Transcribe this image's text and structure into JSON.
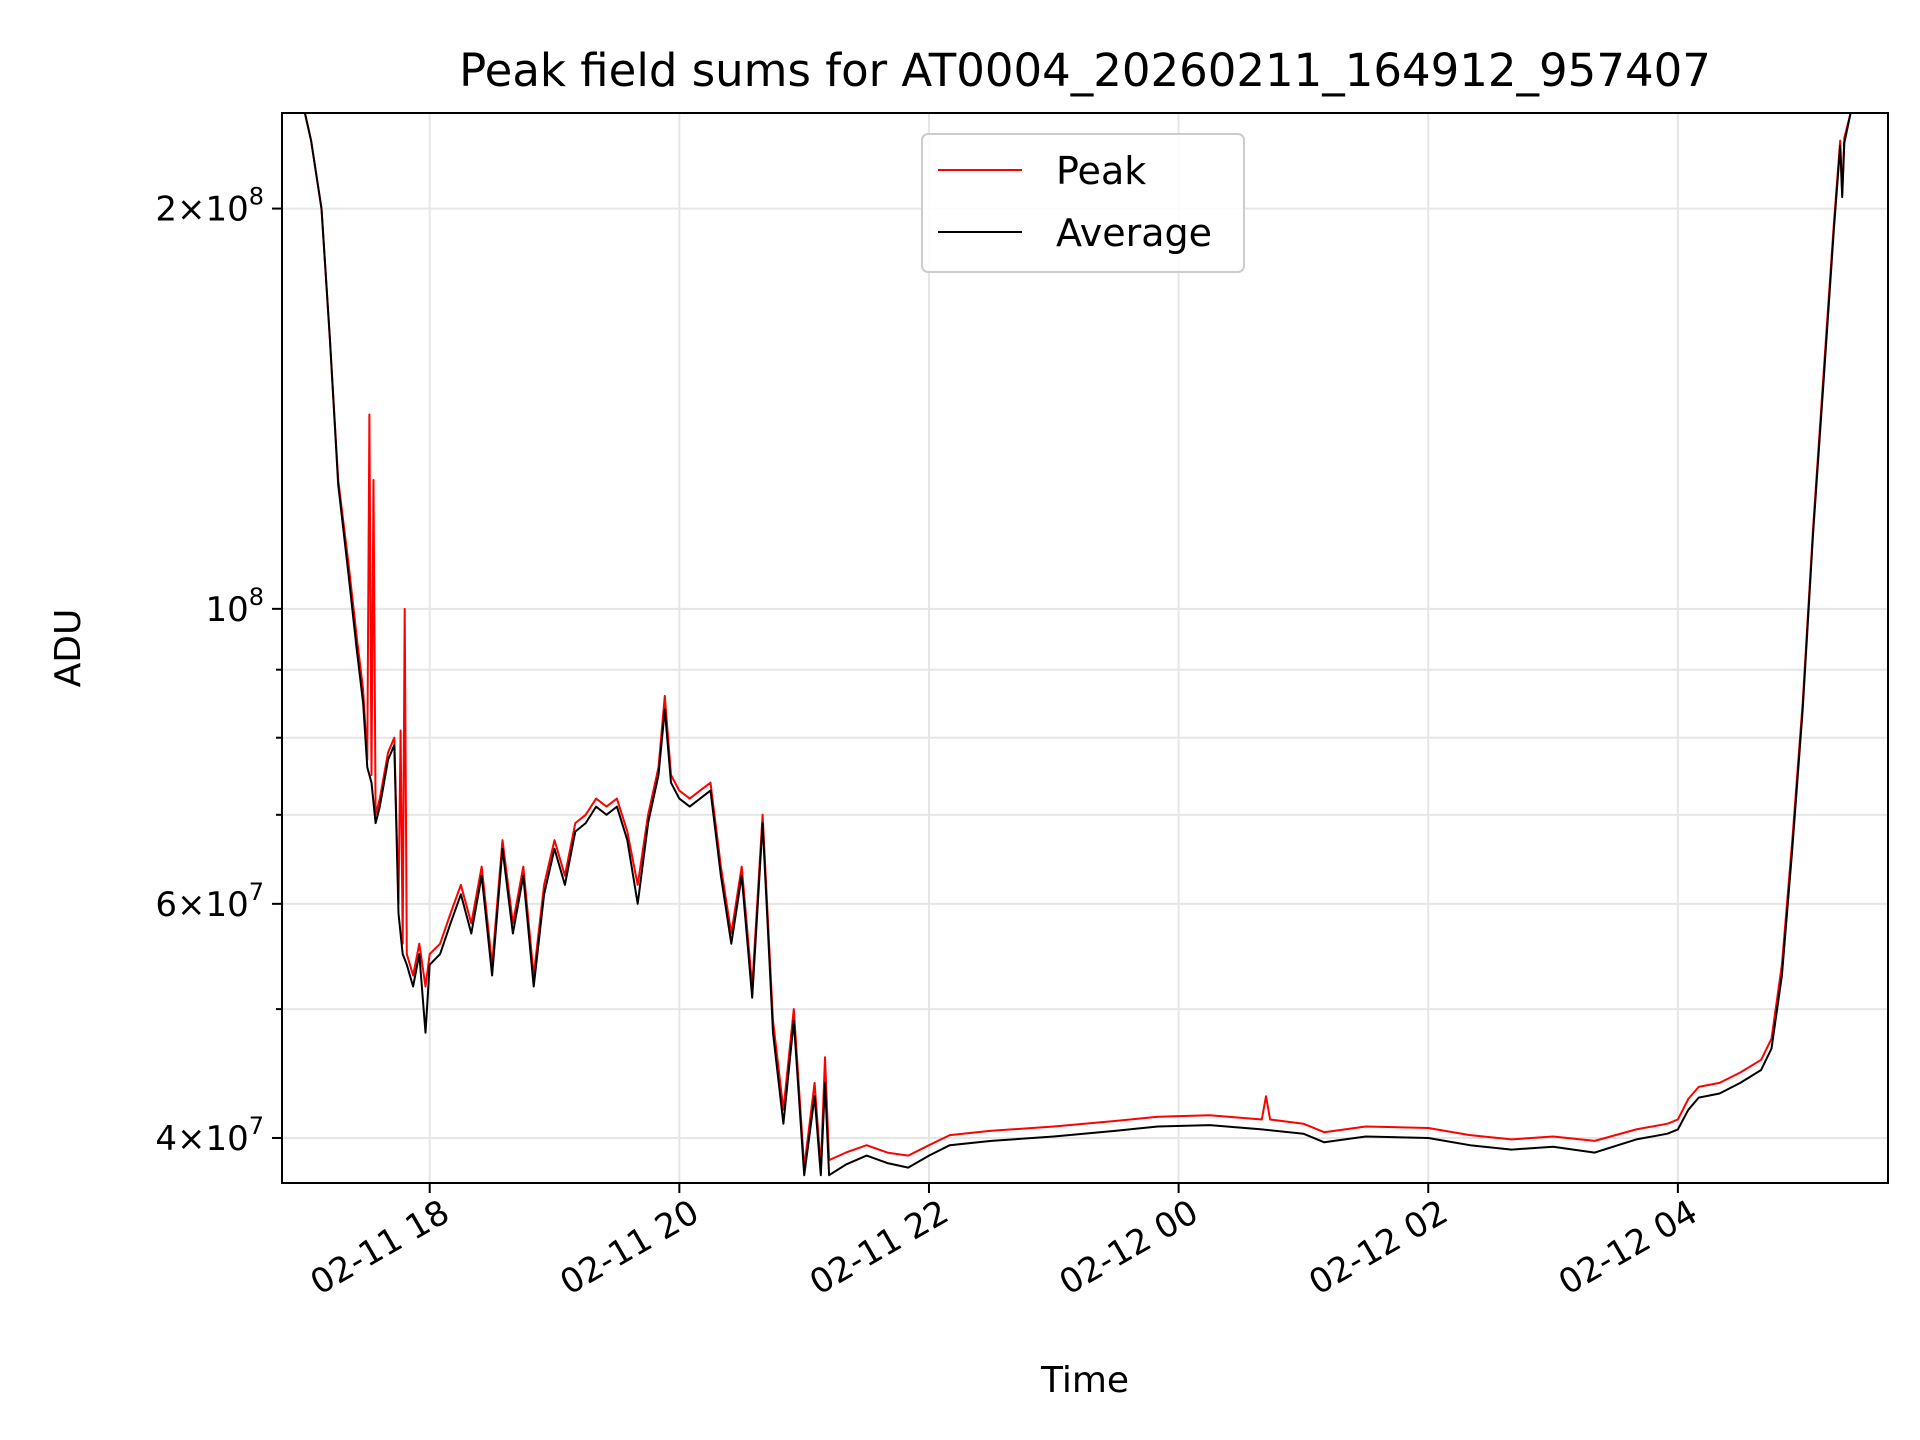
{
  "chart_data": {
    "type": "line",
    "title": "Peak field sums for AT0004_20260211_164912_957407",
    "xlabel": "Time",
    "ylabel": "ADU",
    "yscale": "log",
    "xlim": [
      "2026-02-11 16:49",
      "2026-02-12 05:41"
    ],
    "ylim": [
      37000000,
      236000000
    ],
    "grid": true,
    "legend_position": "top-center",
    "x_ticks": [
      {
        "value": "2026-02-11 18:00",
        "label": "02-11 18"
      },
      {
        "value": "2026-02-11 20:00",
        "label": "02-11 20"
      },
      {
        "value": "2026-02-11 22:00",
        "label": "02-11 22"
      },
      {
        "value": "2026-02-12 00:00",
        "label": "02-12 00"
      },
      {
        "value": "2026-02-12 02:00",
        "label": "02-12 02"
      },
      {
        "value": "2026-02-12 04:00",
        "label": "02-12 04"
      }
    ],
    "y_ticks": [
      {
        "value": 40000000,
        "base": "4",
        "exp": "7"
      },
      {
        "value": 60000000,
        "base": "6",
        "exp": "7"
      },
      {
        "value": 100000000,
        "base": "",
        "exp": "8"
      },
      {
        "value": 200000000,
        "base": "2",
        "exp": "8"
      }
    ],
    "y_minor_ticks": [
      50000000,
      70000000,
      80000000,
      90000000
    ],
    "series": [
      {
        "name": "Peak",
        "color": "#ff0000",
        "points": [
          [
            "2026-02-11 16:49",
            236000000
          ],
          [
            "2026-02-11 17:00",
            236000000
          ],
          [
            "2026-02-11 17:03",
            225000000
          ],
          [
            "2026-02-11 17:08",
            200000000
          ],
          [
            "2026-02-11 17:12",
            160000000
          ],
          [
            "2026-02-11 17:16",
            125000000
          ],
          [
            "2026-02-11 17:21",
            108000000
          ],
          [
            "2026-02-11 17:25",
            95000000
          ],
          [
            "2026-02-11 17:28",
            87000000
          ],
          [
            "2026-02-11 17:30",
            77000000
          ],
          [
            "2026-02-11 17:31",
            140000000
          ],
          [
            "2026-02-11 17:32",
            75000000
          ],
          [
            "2026-02-11 17:33",
            125000000
          ],
          [
            "2026-02-11 17:34",
            70000000
          ],
          [
            "2026-02-11 17:36",
            72000000
          ],
          [
            "2026-02-11 17:40",
            78000000
          ],
          [
            "2026-02-11 17:43",
            80000000
          ],
          [
            "2026-02-11 17:45",
            60000000
          ],
          [
            "2026-02-11 17:46",
            81000000
          ],
          [
            "2026-02-11 17:47",
            56000000
          ],
          [
            "2026-02-11 17:48",
            100000000
          ],
          [
            "2026-02-11 17:49",
            55000000
          ],
          [
            "2026-02-11 17:52",
            53000000
          ],
          [
            "2026-02-11 17:55",
            56000000
          ],
          [
            "2026-02-11 17:58",
            52000000
          ],
          [
            "2026-02-11 18:00",
            55000000
          ],
          [
            "2026-02-11 18:05",
            56000000
          ],
          [
            "2026-02-11 18:10",
            59000000
          ],
          [
            "2026-02-11 18:15",
            62000000
          ],
          [
            "2026-02-11 18:20",
            58000000
          ],
          [
            "2026-02-11 18:25",
            64000000
          ],
          [
            "2026-02-11 18:30",
            54000000
          ],
          [
            "2026-02-11 18:35",
            67000000
          ],
          [
            "2026-02-11 18:40",
            58000000
          ],
          [
            "2026-02-11 18:45",
            64000000
          ],
          [
            "2026-02-11 18:50",
            53000000
          ],
          [
            "2026-02-11 18:55",
            62000000
          ],
          [
            "2026-02-11 19:00",
            67000000
          ],
          [
            "2026-02-11 19:05",
            63000000
          ],
          [
            "2026-02-11 19:10",
            69000000
          ],
          [
            "2026-02-11 19:15",
            70000000
          ],
          [
            "2026-02-11 19:20",
            72000000
          ],
          [
            "2026-02-11 19:25",
            71000000
          ],
          [
            "2026-02-11 19:30",
            72000000
          ],
          [
            "2026-02-11 19:35",
            68000000
          ],
          [
            "2026-02-11 19:40",
            62000000
          ],
          [
            "2026-02-11 19:45",
            70000000
          ],
          [
            "2026-02-11 19:50",
            76000000
          ],
          [
            "2026-02-11 19:53",
            86000000
          ],
          [
            "2026-02-11 19:56",
            75000000
          ],
          [
            "2026-02-11 20:00",
            73000000
          ],
          [
            "2026-02-11 20:05",
            72000000
          ],
          [
            "2026-02-11 20:10",
            73000000
          ],
          [
            "2026-02-11 20:15",
            74000000
          ],
          [
            "2026-02-11 20:20",
            64000000
          ],
          [
            "2026-02-11 20:25",
            57000000
          ],
          [
            "2026-02-11 20:30",
            64000000
          ],
          [
            "2026-02-11 20:35",
            52000000
          ],
          [
            "2026-02-11 20:40",
            70000000
          ],
          [
            "2026-02-11 20:45",
            49000000
          ],
          [
            "2026-02-11 20:50",
            42000000
          ],
          [
            "2026-02-11 20:55",
            50000000
          ],
          [
            "2026-02-11 21:00",
            38000000
          ],
          [
            "2026-02-11 21:05",
            44000000
          ],
          [
            "2026-02-11 21:08",
            38000000
          ],
          [
            "2026-02-11 21:10",
            46000000
          ],
          [
            "2026-02-11 21:12",
            38500000
          ],
          [
            "2026-02-11 21:20",
            39000000
          ],
          [
            "2026-02-11 21:30",
            39500000
          ],
          [
            "2026-02-11 21:40",
            39000000
          ],
          [
            "2026-02-11 21:50",
            38800000
          ],
          [
            "2026-02-11 22:00",
            39500000
          ],
          [
            "2026-02-11 22:10",
            40200000
          ],
          [
            "2026-02-11 22:30",
            40500000
          ],
          [
            "2026-02-11 23:00",
            40800000
          ],
          [
            "2026-02-11 23:30",
            41200000
          ],
          [
            "2026-02-11 23:50",
            41500000
          ],
          [
            "2026-02-12 00:15",
            41600000
          ],
          [
            "2026-02-12 00:40",
            41300000
          ],
          [
            "2026-02-12 00:42",
            43000000
          ],
          [
            "2026-02-12 00:44",
            41300000
          ],
          [
            "2026-02-12 01:00",
            41000000
          ],
          [
            "2026-02-12 01:10",
            40400000
          ],
          [
            "2026-02-12 01:30",
            40800000
          ],
          [
            "2026-02-12 02:00",
            40700000
          ],
          [
            "2026-02-12 02:20",
            40200000
          ],
          [
            "2026-02-12 02:40",
            39900000
          ],
          [
            "2026-02-12 03:00",
            40100000
          ],
          [
            "2026-02-12 03:20",
            39800000
          ],
          [
            "2026-02-12 03:40",
            40600000
          ],
          [
            "2026-02-12 03:55",
            41000000
          ],
          [
            "2026-02-12 04:00",
            41300000
          ],
          [
            "2026-02-12 04:05",
            42800000
          ],
          [
            "2026-02-12 04:10",
            43700000
          ],
          [
            "2026-02-12 04:20",
            44000000
          ],
          [
            "2026-02-12 04:30",
            44800000
          ],
          [
            "2026-02-12 04:40",
            45800000
          ],
          [
            "2026-02-12 04:45",
            47500000
          ],
          [
            "2026-02-12 04:50",
            54000000
          ],
          [
            "2026-02-12 04:55",
            67000000
          ],
          [
            "2026-02-12 05:00",
            85000000
          ],
          [
            "2026-02-12 05:05",
            115000000
          ],
          [
            "2026-02-12 05:10",
            150000000
          ],
          [
            "2026-02-12 05:15",
            195000000
          ],
          [
            "2026-02-12 05:18",
            225000000
          ],
          [
            "2026-02-12 05:19",
            205000000
          ],
          [
            "2026-02-12 05:20",
            226000000
          ],
          [
            "2026-02-12 05:23",
            236000000
          ],
          [
            "2026-02-12 05:41",
            236000000
          ]
        ]
      },
      {
        "name": "Average",
        "color": "#000000",
        "points": [
          [
            "2026-02-11 16:49",
            236000000
          ],
          [
            "2026-02-11 17:00",
            236000000
          ],
          [
            "2026-02-11 17:03",
            225000000
          ],
          [
            "2026-02-11 17:08",
            200000000
          ],
          [
            "2026-02-11 17:12",
            160000000
          ],
          [
            "2026-02-11 17:16",
            124000000
          ],
          [
            "2026-02-11 17:21",
            106000000
          ],
          [
            "2026-02-11 17:25",
            93000000
          ],
          [
            "2026-02-11 17:28",
            85000000
          ],
          [
            "2026-02-11 17:30",
            76000000
          ],
          [
            "2026-02-11 17:32",
            74000000
          ],
          [
            "2026-02-11 17:34",
            69000000
          ],
          [
            "2026-02-11 17:36",
            71000000
          ],
          [
            "2026-02-11 17:40",
            77000000
          ],
          [
            "2026-02-11 17:43",
            79000000
          ],
          [
            "2026-02-11 17:45",
            59000000
          ],
          [
            "2026-02-11 17:47",
            55000000
          ],
          [
            "2026-02-11 17:49",
            54000000
          ],
          [
            "2026-02-11 17:52",
            52000000
          ],
          [
            "2026-02-11 17:55",
            55000000
          ],
          [
            "2026-02-11 17:58",
            48000000
          ],
          [
            "2026-02-11 18:00",
            54000000
          ],
          [
            "2026-02-11 18:05",
            55000000
          ],
          [
            "2026-02-11 18:10",
            58000000
          ],
          [
            "2026-02-11 18:15",
            61000000
          ],
          [
            "2026-02-11 18:20",
            57000000
          ],
          [
            "2026-02-11 18:25",
            63000000
          ],
          [
            "2026-02-11 18:30",
            53000000
          ],
          [
            "2026-02-11 18:35",
            66000000
          ],
          [
            "2026-02-11 18:40",
            57000000
          ],
          [
            "2026-02-11 18:45",
            63000000
          ],
          [
            "2026-02-11 18:50",
            52000000
          ],
          [
            "2026-02-11 18:55",
            61000000
          ],
          [
            "2026-02-11 19:00",
            66000000
          ],
          [
            "2026-02-11 19:05",
            62000000
          ],
          [
            "2026-02-11 19:10",
            68000000
          ],
          [
            "2026-02-11 19:15",
            69000000
          ],
          [
            "2026-02-11 19:20",
            71000000
          ],
          [
            "2026-02-11 19:25",
            70000000
          ],
          [
            "2026-02-11 19:30",
            71000000
          ],
          [
            "2026-02-11 19:35",
            67000000
          ],
          [
            "2026-02-11 19:40",
            60000000
          ],
          [
            "2026-02-11 19:45",
            69000000
          ],
          [
            "2026-02-11 19:50",
            75000000
          ],
          [
            "2026-02-11 19:53",
            84000000
          ],
          [
            "2026-02-11 19:56",
            74000000
          ],
          [
            "2026-02-11 20:00",
            72000000
          ],
          [
            "2026-02-11 20:05",
            71000000
          ],
          [
            "2026-02-11 20:10",
            72000000
          ],
          [
            "2026-02-11 20:15",
            73000000
          ],
          [
            "2026-02-11 20:20",
            63000000
          ],
          [
            "2026-02-11 20:25",
            56000000
          ],
          [
            "2026-02-11 20:30",
            63000000
          ],
          [
            "2026-02-11 20:35",
            51000000
          ],
          [
            "2026-02-11 20:40",
            69000000
          ],
          [
            "2026-02-11 20:45",
            48000000
          ],
          [
            "2026-02-11 20:50",
            41000000
          ],
          [
            "2026-02-11 20:55",
            49000000
          ],
          [
            "2026-02-11 21:00",
            37500000
          ],
          [
            "2026-02-11 21:05",
            43000000
          ],
          [
            "2026-02-11 21:08",
            37500000
          ],
          [
            "2026-02-11 21:10",
            44000000
          ],
          [
            "2026-02-11 21:12",
            37500000
          ],
          [
            "2026-02-11 21:20",
            38200000
          ],
          [
            "2026-02-11 21:30",
            38800000
          ],
          [
            "2026-02-11 21:40",
            38300000
          ],
          [
            "2026-02-11 21:50",
            38000000
          ],
          [
            "2026-02-11 22:00",
            38800000
          ],
          [
            "2026-02-11 22:10",
            39500000
          ],
          [
            "2026-02-11 22:30",
            39800000
          ],
          [
            "2026-02-11 23:00",
            40100000
          ],
          [
            "2026-02-11 23:30",
            40500000
          ],
          [
            "2026-02-11 23:50",
            40800000
          ],
          [
            "2026-02-12 00:15",
            40900000
          ],
          [
            "2026-02-12 00:40",
            40600000
          ],
          [
            "2026-02-12 01:00",
            40300000
          ],
          [
            "2026-02-12 01:10",
            39700000
          ],
          [
            "2026-02-12 01:30",
            40100000
          ],
          [
            "2026-02-12 02:00",
            40000000
          ],
          [
            "2026-02-12 02:20",
            39500000
          ],
          [
            "2026-02-12 02:40",
            39200000
          ],
          [
            "2026-02-12 03:00",
            39400000
          ],
          [
            "2026-02-12 03:20",
            39000000
          ],
          [
            "2026-02-12 03:40",
            39900000
          ],
          [
            "2026-02-12 03:55",
            40300000
          ],
          [
            "2026-02-12 04:00",
            40600000
          ],
          [
            "2026-02-12 04:05",
            42000000
          ],
          [
            "2026-02-12 04:10",
            42900000
          ],
          [
            "2026-02-12 04:20",
            43200000
          ],
          [
            "2026-02-12 04:30",
            44000000
          ],
          [
            "2026-02-12 04:40",
            45000000
          ],
          [
            "2026-02-12 04:45",
            46700000
          ],
          [
            "2026-02-12 04:50",
            53000000
          ],
          [
            "2026-02-12 04:55",
            66000000
          ],
          [
            "2026-02-12 05:00",
            84000000
          ],
          [
            "2026-02-12 05:05",
            114000000
          ],
          [
            "2026-02-12 05:10",
            148000000
          ],
          [
            "2026-02-12 05:15",
            193000000
          ],
          [
            "2026-02-12 05:18",
            223000000
          ],
          [
            "2026-02-12 05:19",
            204000000
          ],
          [
            "2026-02-12 05:20",
            224000000
          ],
          [
            "2026-02-12 05:23",
            236000000
          ],
          [
            "2026-02-12 05:41",
            236000000
          ]
        ]
      }
    ]
  }
}
